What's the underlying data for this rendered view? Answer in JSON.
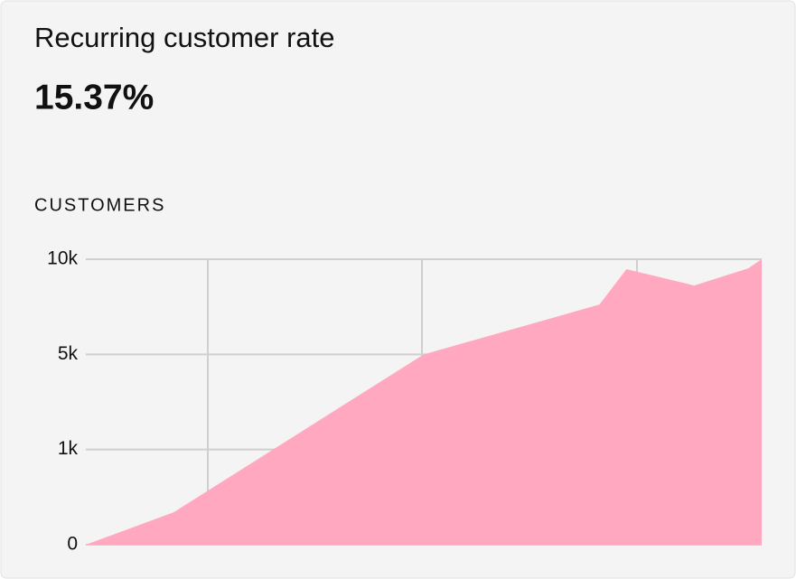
{
  "chart_data": {
    "type": "area",
    "title": "Recurring customer rate",
    "subtitle": "15.37%",
    "y_label": "CUSTOMERS",
    "x": [
      0,
      13,
      50,
      76,
      80,
      90,
      98,
      100
    ],
    "values": [
      0,
      340,
      5000,
      7620,
      9480,
      8620,
      9520,
      10000
    ],
    "color": "#ffa8bf",
    "xlim": [
      0,
      100
    ],
    "ylim": [
      0,
      10000
    ],
    "yticks": [
      0,
      {
        "value": 1000,
        "label": "1k"
      },
      {
        "value": 5000,
        "label": "5k"
      },
      {
        "value": 10000,
        "label": "10k"
      }
    ],
    "grid": true
  }
}
